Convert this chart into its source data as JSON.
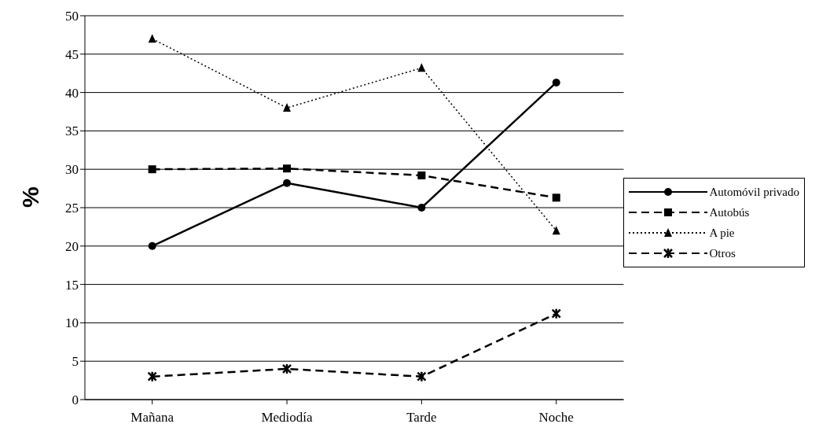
{
  "chart_data": {
    "type": "line",
    "ylabel": "%",
    "categories": [
      "Mañana",
      "Mediodía",
      "Tarde",
      "Noche"
    ],
    "ylim": [
      0,
      50
    ],
    "yticks": [
      0,
      5,
      10,
      15,
      20,
      25,
      30,
      35,
      40,
      45,
      50
    ],
    "grid": "y",
    "legend": "right",
    "series": [
      {
        "name": "Automóvil privado",
        "color": "#000000",
        "marker": "circle",
        "line_style": "solid",
        "values": [
          20,
          28.2,
          25,
          41.3
        ]
      },
      {
        "name": "Autobús",
        "color": "#000000",
        "marker": "square",
        "line_style": "dashed",
        "values": [
          30,
          30.1,
          29.2,
          26.3
        ]
      },
      {
        "name": "A pie",
        "color": "#000000",
        "marker": "triangle",
        "line_style": "dotted",
        "values": [
          47,
          38,
          43.2,
          22
        ]
      },
      {
        "name": "Otros",
        "color": "#000000",
        "marker": "cross",
        "line_style": "dashed",
        "values": [
          3,
          4,
          3,
          11.2
        ]
      }
    ]
  }
}
